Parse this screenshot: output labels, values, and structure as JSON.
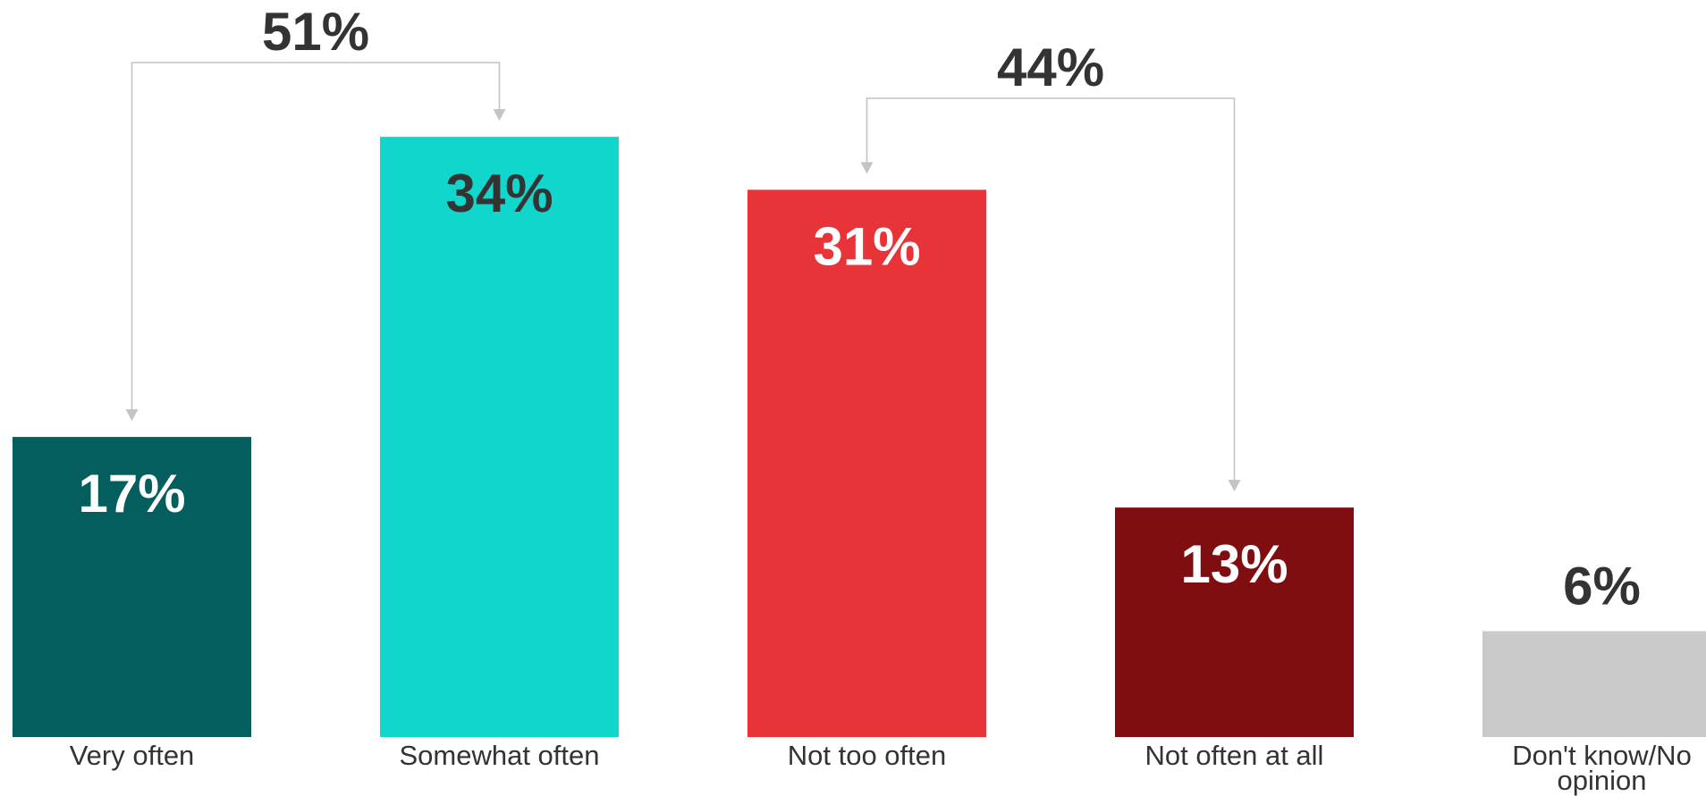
{
  "chart_data": {
    "type": "bar",
    "title": "",
    "xlabel": "",
    "ylabel": "",
    "ylim": [
      0,
      40
    ],
    "grid": false,
    "legend": "none",
    "categories": [
      "Very often",
      "Somewhat often",
      "Not too often",
      "Not often at all",
      "Don't know/No opinion"
    ],
    "values": [
      17,
      34,
      31,
      13,
      6
    ],
    "value_labels": [
      "17%",
      "34%",
      "31%",
      "13%",
      "6%"
    ],
    "colors": [
      "#045e5e",
      "#10d6cb",
      "#e83338",
      "#800e11",
      "#cacaca"
    ],
    "value_label_colors": [
      "#ffffff",
      "#333333",
      "#ffffff",
      "#ffffff",
      "#333333"
    ],
    "annotations": [
      {
        "label": "51%",
        "from_category": 0,
        "to_category": 1
      },
      {
        "label": "44%",
        "from_category": 2,
        "to_category": 3
      }
    ],
    "connector_color": "#c4c4c4"
  }
}
